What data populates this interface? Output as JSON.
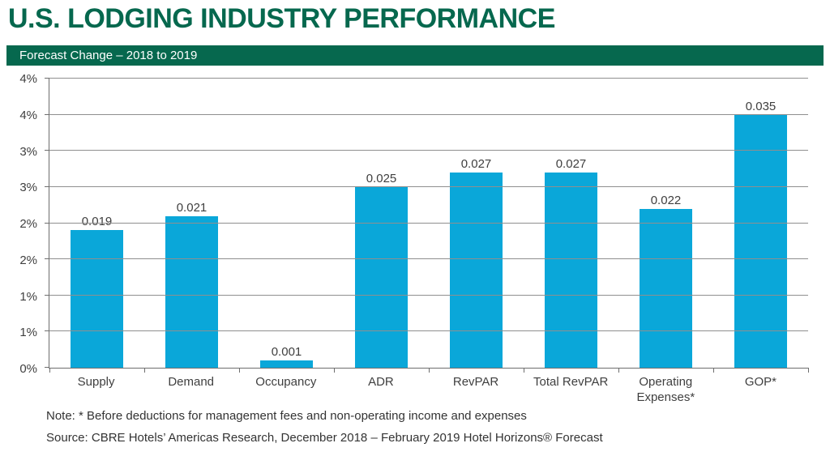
{
  "page": {
    "title": "U.S. LODGING INDUSTRY PERFORMANCE",
    "banner": "Forecast Change – 2018 to 2019"
  },
  "colors": {
    "brand_green": "#06684E",
    "banner_green": "#06684E",
    "bar_cyan": "#0AA7D9",
    "gridline": "#8F8F8F",
    "axis": "#6E6E6E",
    "label_text": "#3F3F3F"
  },
  "chart_data": {
    "type": "bar",
    "title": "Forecast Change – 2018 to 2019",
    "categories": [
      "Supply",
      "Demand",
      "Occupancy",
      "ADR",
      "RevPAR",
      "Total RevPAR",
      "Operating Expenses*",
      "GOP*"
    ],
    "values": [
      0.019,
      0.021,
      0.001,
      0.025,
      0.027,
      0.027,
      0.022,
      0.035
    ],
    "value_labels": [
      "0.019",
      "0.021",
      "0.001",
      "0.025",
      "0.027",
      "0.027",
      "0.022",
      "0.035"
    ],
    "xlabel": "",
    "ylabel": "",
    "ylim": [
      0,
      0.04
    ],
    "y_tick_interval": 0.005,
    "y_tick_labels_bottom_to_top": [
      "0%",
      "1%",
      "1%",
      "2%",
      "2%",
      "3%",
      "3%",
      "4%",
      "4%"
    ],
    "grid": true,
    "legend": "none",
    "bar_color": "#0AA7D9"
  },
  "notes": {
    "note": "Note: * Before deductions for management fees and non-operating income and expenses",
    "source": "Source: CBRE Hotels’ Americas Research, December 2018 – February 2019 Hotel Horizons® Forecast"
  }
}
